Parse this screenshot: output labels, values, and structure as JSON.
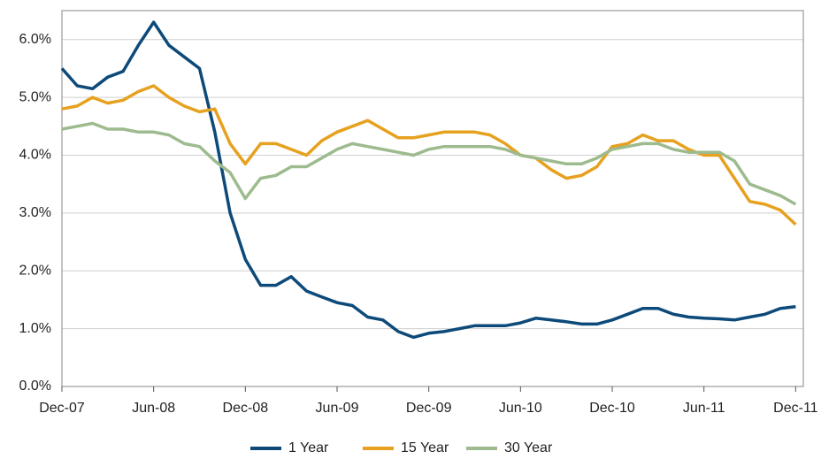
{
  "chart_data": {
    "type": "line",
    "categories": [
      "Dec-07",
      null,
      null,
      null,
      null,
      null,
      "Jun-08",
      null,
      null,
      null,
      null,
      null,
      "Dec-08",
      null,
      null,
      null,
      null,
      null,
      "Jun-09",
      null,
      null,
      null,
      null,
      null,
      "Dec-09",
      null,
      null,
      null,
      null,
      null,
      "Jun-10",
      null,
      null,
      null,
      null,
      null,
      "Dec-10",
      null,
      null,
      null,
      null,
      null,
      "Jun-11",
      null,
      null,
      null,
      null,
      null,
      "Dec-11"
    ],
    "series": [
      {
        "name": "1 Year",
        "color": "#0d4a79",
        "values": [
          5.5,
          5.2,
          5.15,
          5.35,
          5.45,
          5.9,
          6.3,
          5.9,
          5.7,
          5.5,
          4.4,
          3.0,
          2.2,
          1.75,
          1.75,
          1.9,
          1.65,
          1.55,
          1.45,
          1.4,
          1.2,
          1.15,
          0.95,
          0.85,
          0.92,
          0.95,
          1.0,
          1.05,
          1.05,
          1.05,
          1.1,
          1.18,
          1.15,
          1.12,
          1.08,
          1.08,
          1.15,
          1.25,
          1.35,
          1.35,
          1.25,
          1.2,
          1.18,
          1.17,
          1.15,
          1.2,
          1.25,
          1.35,
          1.38
        ]
      },
      {
        "name": "15 Year",
        "color": "#e6a11f",
        "values": [
          4.8,
          4.85,
          5.0,
          4.9,
          4.95,
          5.1,
          5.2,
          5.0,
          4.85,
          4.75,
          4.8,
          4.2,
          3.85,
          4.2,
          4.2,
          4.1,
          4.0,
          4.25,
          4.4,
          4.5,
          4.6,
          4.45,
          4.3,
          4.3,
          4.35,
          4.4,
          4.4,
          4.4,
          4.35,
          4.2,
          4.0,
          3.95,
          3.75,
          3.6,
          3.65,
          3.8,
          4.15,
          4.2,
          4.35,
          4.25,
          4.25,
          4.1,
          4.0,
          4.0,
          3.6,
          3.2,
          3.15,
          3.05,
          2.8
        ]
      },
      {
        "name": "30 Year",
        "color": "#9dbb8e",
        "values": [
          4.45,
          4.5,
          4.55,
          4.45,
          4.45,
          4.4,
          4.4,
          4.35,
          4.2,
          4.15,
          3.9,
          3.7,
          3.25,
          3.6,
          3.65,
          3.8,
          3.8,
          3.95,
          4.1,
          4.2,
          4.15,
          4.1,
          4.05,
          4.0,
          4.1,
          4.15,
          4.15,
          4.15,
          4.15,
          4.1,
          4.0,
          3.95,
          3.9,
          3.85,
          3.85,
          3.95,
          4.1,
          4.15,
          4.2,
          4.2,
          4.1,
          4.05,
          4.05,
          4.05,
          3.9,
          3.5,
          3.4,
          3.3,
          3.15
        ]
      }
    ],
    "ylim": [
      0,
      6.5
    ],
    "yticks": [
      {
        "value": 0,
        "label": "0.0%"
      },
      {
        "value": 1,
        "label": "1.0%"
      },
      {
        "value": 2,
        "label": "2.0%"
      },
      {
        "value": 3,
        "label": "3.0%"
      },
      {
        "value": 4,
        "label": "4.0%"
      },
      {
        "value": 5,
        "label": "5.0%"
      },
      {
        "value": 6,
        "label": "6.0%"
      }
    ],
    "grid": true
  }
}
